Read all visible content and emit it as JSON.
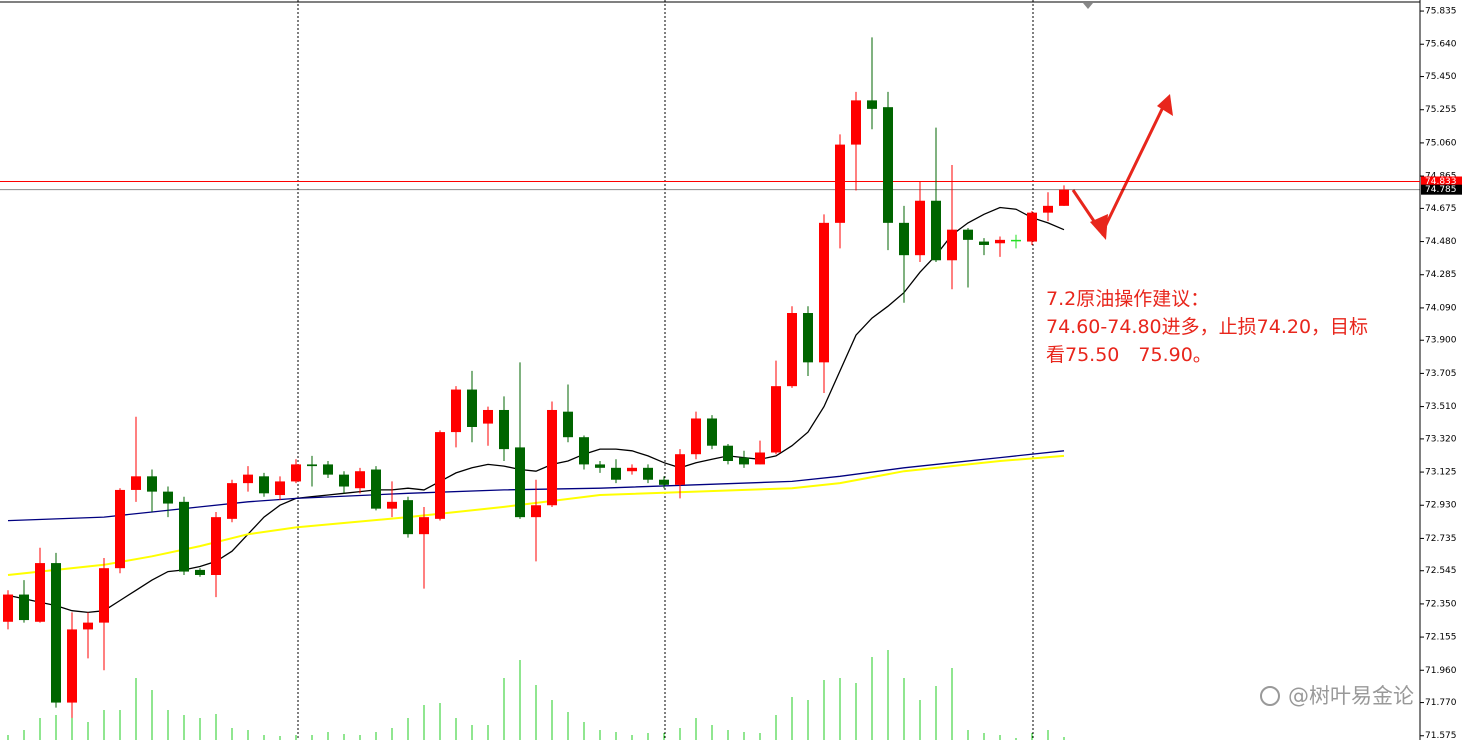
{
  "chart_data": {
    "type": "candlestick",
    "ylim": [
      71.55,
      75.9
    ],
    "yticks": [
      75.835,
      {
        "value": 75.64,
        "label": "75.640"
      },
      {
        "value": 75.45,
        "label": "75.450"
      },
      75.255,
      {
        "value": 75.06,
        "label": "75.060"
      },
      74.865,
      74.675,
      {
        "value": 74.48,
        "label": "74.480"
      },
      74.285,
      {
        "value": 74.09,
        "label": "74.090"
      },
      {
        "value": 73.9,
        "label": "73.900"
      },
      73.705,
      {
        "value": 73.51,
        "label": "73.510"
      },
      {
        "value": 73.32,
        "label": "73.320"
      },
      73.125,
      {
        "value": 72.93,
        "label": "72.930"
      },
      72.735,
      72.545,
      {
        "value": 72.35,
        "label": "72.350"
      },
      72.155,
      {
        "value": 71.96,
        "label": "71.960"
      },
      {
        "value": 71.77,
        "label": "71.770"
      },
      71.575
    ],
    "up_color": "#ff0000",
    "down_color": "#006400",
    "doji_color": "#22dd22",
    "candles": {
      "open": [
        72.245,
        72.405,
        72.245,
        72.59,
        71.77,
        72.2,
        72.24,
        72.56,
        73.02,
        73.1,
        73.01,
        72.95,
        72.55,
        72.52,
        72.85,
        73.06,
        73.1,
        72.99,
        73.07,
        73.17,
        73.17,
        73.11,
        73.03,
        73.14,
        72.91,
        72.96,
        72.76,
        72.85,
        73.36,
        73.61,
        73.41,
        73.49,
        73.27,
        72.86,
        72.93,
        73.48,
        73.33,
        73.17,
        73.15,
        73.13,
        73.15,
        73.08,
        73.05,
        73.23,
        73.44,
        73.28,
        73.21,
        73.17,
        73.24,
        73.63,
        74.06,
        73.77,
        74.59,
        75.05,
        75.31,
        75.27,
        74.59,
        74.4,
        74.72,
        74.37,
        74.55,
        74.48,
        74.47,
        74.49,
        74.48,
        74.65,
        74.69
      ],
      "high": [
        72.43,
        72.49,
        72.68,
        72.65,
        72.3,
        72.3,
        72.62,
        73.03,
        73.45,
        73.14,
        73.04,
        72.98,
        72.56,
        72.89,
        73.08,
        73.16,
        73.12,
        73.1,
        73.2,
        73.22,
        73.19,
        73.13,
        73.15,
        73.16,
        73.07,
        72.98,
        72.92,
        73.37,
        73.63,
        73.72,
        73.51,
        73.57,
        73.77,
        73.08,
        73.54,
        73.64,
        73.34,
        73.19,
        73.2,
        73.17,
        73.17,
        73.1,
        73.26,
        73.48,
        73.46,
        73.29,
        73.25,
        73.31,
        73.78,
        74.1,
        74.1,
        74.64,
        75.11,
        75.36,
        75.68,
        75.36,
        74.69,
        74.83,
        75.15,
        74.93,
        74.56,
        74.5,
        74.51,
        74.52,
        74.66,
        74.77,
        74.81
      ],
      "low": [
        72.2,
        72.24,
        72.24,
        71.74,
        71.68,
        72.03,
        71.96,
        72.53,
        72.95,
        72.89,
        72.86,
        72.52,
        72.51,
        72.39,
        72.83,
        73.01,
        72.98,
        72.96,
        73.06,
        73.04,
        73.09,
        73.0,
        73.0,
        72.9,
        72.86,
        72.74,
        72.44,
        72.84,
        73.27,
        73.3,
        73.28,
        73.19,
        72.85,
        72.6,
        72.92,
        73.3,
        73.14,
        73.12,
        73.06,
        73.11,
        73.06,
        73.03,
        72.97,
        73.2,
        73.26,
        73.17,
        73.15,
        73.17,
        73.23,
        73.62,
        73.69,
        73.59,
        74.44,
        74.78,
        75.14,
        74.43,
        74.12,
        74.36,
        74.36,
        74.2,
        74.21,
        74.4,
        74.39,
        74.44,
        74.46,
        74.6,
        74.69
      ],
      "close": [
        72.405,
        72.255,
        72.59,
        71.77,
        72.2,
        72.24,
        72.56,
        73.02,
        73.1,
        73.01,
        72.94,
        72.54,
        72.52,
        72.86,
        73.06,
        73.11,
        73.0,
        73.07,
        73.17,
        73.16,
        73.11,
        73.04,
        73.13,
        72.91,
        72.95,
        72.76,
        72.86,
        73.36,
        73.61,
        73.39,
        73.49,
        73.26,
        72.86,
        72.93,
        73.49,
        73.33,
        73.17,
        73.15,
        73.08,
        73.15,
        73.08,
        73.05,
        73.23,
        73.44,
        73.28,
        73.19,
        73.17,
        73.24,
        73.63,
        74.06,
        73.77,
        74.59,
        75.05,
        75.31,
        75.26,
        74.59,
        74.4,
        74.72,
        74.37,
        74.55,
        74.49,
        74.46,
        74.49,
        74.49,
        74.65,
        74.69,
        74.785
      ]
    },
    "volume_lim": [
      0,
      100
    ],
    "volume_color": "#22cc22",
    "volume": [
      5,
      10,
      22,
      25,
      35,
      18,
      30,
      30,
      62,
      50,
      30,
      25,
      22,
      26,
      12,
      10,
      5,
      4,
      5,
      5,
      8,
      6,
      5,
      8,
      12,
      22,
      35,
      37,
      22,
      15,
      15,
      62,
      80,
      55,
      40,
      28,
      18,
      10,
      8,
      5,
      7,
      7,
      12,
      22,
      15,
      10,
      8,
      7,
      25,
      43,
      40,
      60,
      62,
      57,
      83,
      90,
      62,
      40,
      54,
      72,
      10,
      7,
      5,
      2,
      7,
      10,
      3
    ],
    "series": [
      {
        "color": "#000000",
        "values": [
          72.4,
          72.38,
          72.36,
          72.34,
          72.31,
          72.3,
          72.31,
          72.37,
          72.43,
          72.49,
          72.54,
          72.55,
          72.57,
          72.6,
          72.66,
          72.76,
          72.86,
          72.93,
          72.97,
          72.98,
          72.99,
          73.0,
          73.01,
          73.02,
          73.02,
          73.03,
          73.02,
          73.07,
          73.12,
          73.15,
          73.17,
          73.16,
          73.14,
          73.13,
          73.17,
          73.19,
          73.23,
          73.26,
          73.26,
          73.25,
          73.22,
          73.18,
          73.15,
          73.18,
          73.2,
          73.22,
          73.21,
          73.2,
          73.22,
          73.28,
          73.36,
          73.51,
          73.72,
          73.93,
          74.03,
          74.1,
          74.18,
          74.3,
          74.4,
          74.52,
          74.59,
          74.64,
          74.68,
          74.67,
          74.62,
          74.59,
          74.55
        ]
      },
      {
        "color": "#000080",
        "x": [
          0,
          6,
          9,
          12,
          15,
          18,
          25,
          31,
          37,
          43,
          49,
          52,
          56,
          59,
          62,
          66
        ],
        "values": [
          72.84,
          72.86,
          72.89,
          72.92,
          72.95,
          72.97,
          73.0,
          73.02,
          73.03,
          73.05,
          73.07,
          73.1,
          73.15,
          73.18,
          73.21,
          73.25
        ]
      },
      {
        "color": "#ffff00",
        "x": [
          0,
          6,
          9,
          12,
          15,
          18,
          25,
          31,
          37,
          43,
          49,
          52,
          56,
          59,
          62,
          66
        ],
        "values": [
          72.52,
          72.58,
          72.63,
          72.69,
          72.76,
          72.8,
          72.86,
          72.92,
          72.99,
          73.01,
          73.03,
          73.06,
          73.13,
          73.16,
          73.19,
          73.22
        ]
      }
    ],
    "price_lines": [
      {
        "value": 74.833,
        "color": "#ff0000"
      },
      {
        "value": 74.785,
        "color": "#000000"
      }
    ],
    "annotation": [
      "7.2原油操作建议：",
      "74.60-74.80进多，止损74.20，目标",
      "看75.50　75.90。"
    ],
    "annotation_color": "#e8261c",
    "watermark": "@树叶易金论"
  }
}
